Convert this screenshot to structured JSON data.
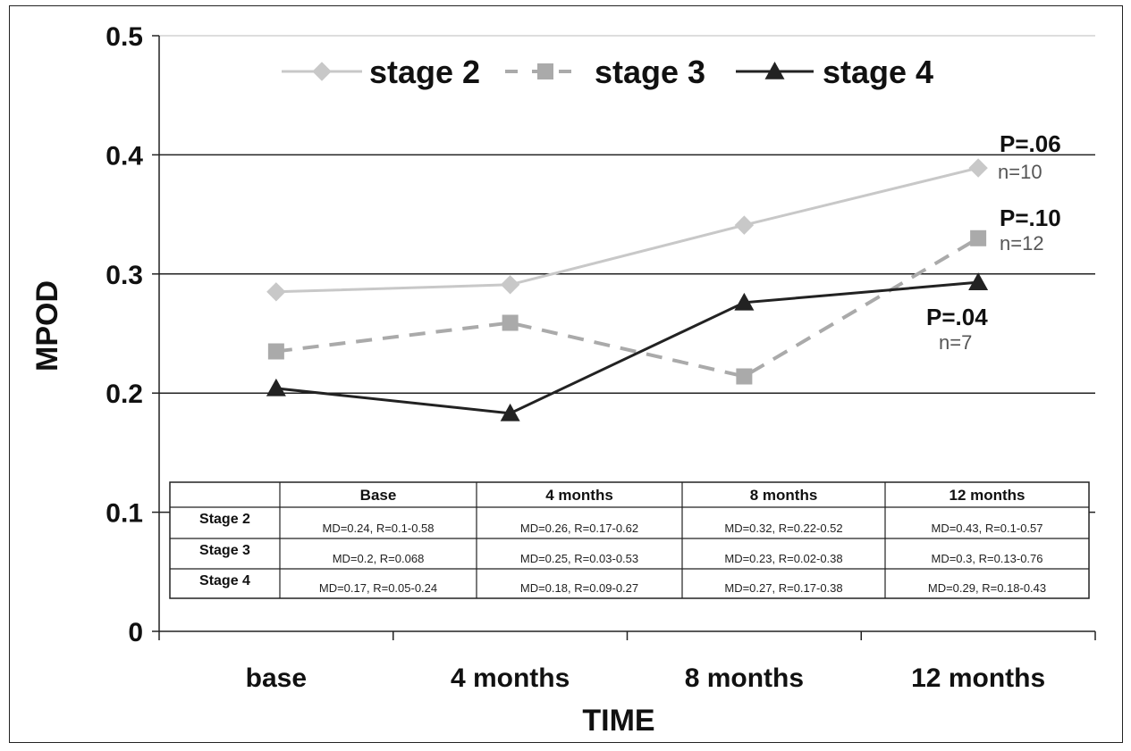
{
  "chart_data": {
    "type": "line",
    "xlabel": "TIME",
    "ylabel": "MPOD",
    "ylim": [
      0,
      0.5
    ],
    "yticks": [
      "0",
      "0.1",
      "0.2",
      "0.3",
      "0.4",
      "0.5"
    ],
    "ytick_values": [
      0,
      0.1,
      0.2,
      0.3,
      0.4,
      0.5
    ],
    "categories": [
      "base",
      "4 months",
      "8 months",
      "12 months"
    ],
    "grid": "horizontal major lines",
    "legend_position": "top",
    "series": [
      {
        "name": "stage 2",
        "values": [
          0.285,
          0.291,
          0.341,
          0.389
        ],
        "color": "#c8c8c8",
        "marker": "diamond",
        "dash": "solid"
      },
      {
        "name": "stage 3",
        "values": [
          0.235,
          0.259,
          0.214,
          0.33
        ],
        "color": "#aaaaaa",
        "marker": "square",
        "dash": "dashed"
      },
      {
        "name": "stage 4",
        "values": [
          0.204,
          0.183,
          0.276,
          0.293
        ],
        "color": "#222222",
        "marker": "triangle",
        "dash": "solid"
      }
    ],
    "annotations": [
      {
        "series": "stage 2",
        "p": "P=.06",
        "n": "n=10"
      },
      {
        "series": "stage 3",
        "p": "P=.10",
        "n": "n=12"
      },
      {
        "series": "stage 4",
        "p": "P=.04",
        "n": "n=7"
      }
    ],
    "table": {
      "headers": [
        "",
        "Base",
        "4 months",
        "8 months",
        "12 months"
      ],
      "rows": [
        [
          "Stage 2",
          "MD=0.24, R=0.1-0.58",
          "MD=0.26, R=0.17-0.62",
          "MD=0.32, R=0.22-0.52",
          "MD=0.43, R=0.1-0.57"
        ],
        [
          "Stage 3",
          "MD=0.2, R=0.068",
          "MD=0.25, R=0.03-0.53",
          "MD=0.23, R=0.02-0.38",
          "MD=0.3, R=0.13-0.76"
        ],
        [
          "Stage 4",
          "MD=0.17, R=0.05-0.24",
          "MD=0.18, R=0.09-0.27",
          "MD=0.27, R=0.17-0.38",
          "MD=0.29, R=0.18-0.43"
        ]
      ]
    }
  }
}
